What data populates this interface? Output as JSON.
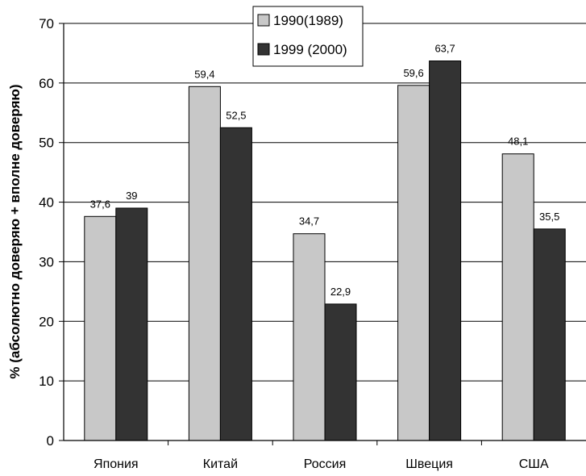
{
  "chart_data": {
    "type": "bar",
    "title": "",
    "xlabel": "",
    "ylabel": "% (абсолютно доверяю + вполне доверяю)",
    "ylim": [
      0,
      70
    ],
    "yticks": [
      0,
      10,
      20,
      30,
      40,
      50,
      60,
      70
    ],
    "categories": [
      "Япония",
      "Китай",
      "Россия",
      "Швеция",
      "США"
    ],
    "series": [
      {
        "name": "1990(1989)",
        "values": [
          37.6,
          59.4,
          34.7,
          59.6,
          48.1
        ],
        "labels": [
          "37,6",
          "59,4",
          "34,7",
          "59,6",
          "48,1"
        ],
        "color": "#c8c8c8"
      },
      {
        "name": "1999 (2000)",
        "values": [
          39,
          52.5,
          22.9,
          63.7,
          35.5
        ],
        "labels": [
          "39",
          "52,5",
          "22,9",
          "63,7",
          "35,5"
        ],
        "color": "#333333"
      }
    ],
    "grid": true,
    "legend_position": "top-center"
  }
}
